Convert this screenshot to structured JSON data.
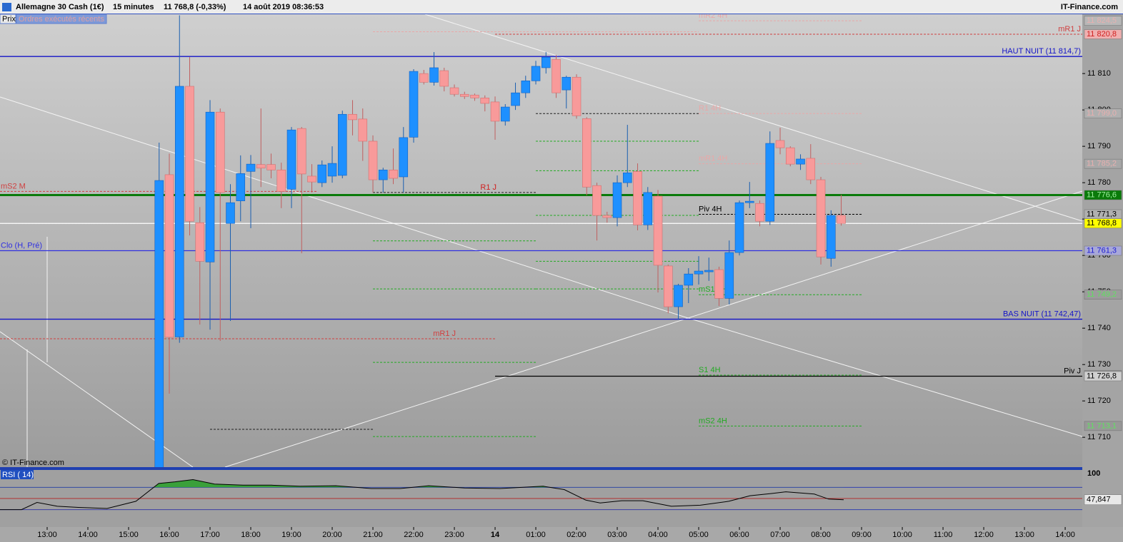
{
  "header": {
    "instrument": "Allemagne 30 Cash (1€)",
    "period": "15 minutes",
    "quote": "11 768,8 (-0,33%)",
    "datetime": "14 août 2019 08:36:53",
    "brand": "IT-Finance.com",
    "tab_price": "Prix",
    "tab_orders": "Ordres exécutés récents",
    "copyright": "© IT-Finance.com"
  },
  "chart_data": {
    "type": "candlestick",
    "up_color": "#1e90ff",
    "down_color": "#f89a9a",
    "xlim": [
      11.842,
      38.42
    ],
    "xticks": [
      {
        "value": 13,
        "label": "13:00"
      },
      {
        "value": 14,
        "label": "14:00"
      },
      {
        "value": 15,
        "label": "15:00"
      },
      {
        "value": 16,
        "label": "16:00"
      },
      {
        "value": 17,
        "label": "17:00"
      },
      {
        "value": 18,
        "label": "18:00"
      },
      {
        "value": 19,
        "label": "19:00"
      },
      {
        "value": 20,
        "label": "20:00"
      },
      {
        "value": 21,
        "label": "21:00"
      },
      {
        "value": 22,
        "label": "22:00"
      },
      {
        "value": 23,
        "label": "23:00"
      },
      {
        "value": 24,
        "label": "14"
      },
      {
        "value": 25,
        "label": "01:00"
      },
      {
        "value": 26,
        "label": "02:00"
      },
      {
        "value": 27,
        "label": "03:00"
      },
      {
        "value": 28,
        "label": "04:00"
      },
      {
        "value": 29,
        "label": "05:00"
      },
      {
        "value": 30,
        "label": "06:00"
      },
      {
        "value": 31,
        "label": "07:00"
      },
      {
        "value": 32,
        "label": "08:00"
      },
      {
        "value": 33,
        "label": "09:00"
      },
      {
        "value": 34,
        "label": "10:00"
      },
      {
        "value": 35,
        "label": "11:00"
      },
      {
        "value": 36,
        "label": "12:00"
      },
      {
        "value": 37,
        "label": "13:00"
      },
      {
        "value": 38,
        "label": "14:00"
      }
    ],
    "ylim": [
      11701.8,
      11826.3
    ],
    "yticks": [
      {
        "value": 11710,
        "label": "11 710"
      },
      {
        "value": 11720,
        "label": "11 720"
      },
      {
        "value": 11730,
        "label": "11 730"
      },
      {
        "value": 11740,
        "label": "11 740"
      },
      {
        "value": 11750,
        "label": "11 750"
      },
      {
        "value": 11760,
        "label": "11 760"
      },
      {
        "value": 11770,
        "label": "11 770"
      },
      {
        "value": 11780,
        "label": "11 780"
      },
      {
        "value": 11790,
        "label": "11 790"
      },
      {
        "value": 11800,
        "label": "11 800"
      },
      {
        "value": 11810,
        "label": "11 810"
      }
    ],
    "x": [
      15.75,
      16,
      16.25,
      16.5,
      16.75,
      17,
      17.25,
      17.5,
      17.75,
      18,
      18.25,
      18.5,
      18.75,
      19,
      19.25,
      19.5,
      19.75,
      20,
      20.25,
      20.5,
      20.75,
      21,
      21.25,
      21.5,
      21.75,
      22,
      22.25,
      22.5,
      22.75,
      23,
      23.25,
      23.5,
      23.75,
      24,
      24.25,
      24.5,
      24.75,
      25,
      25.25,
      25.5,
      25.75,
      26,
      26.25,
      26.5,
      26.75,
      27,
      27.25,
      27.5,
      27.75,
      28,
      28.25,
      28.5,
      28.75,
      29,
      29.25,
      29.5,
      29.75,
      30,
      30.25,
      30.5,
      30.75,
      31,
      31.25,
      31.5,
      31.75,
      32,
      32.25,
      32.5
    ],
    "open": [
      11700,
      11782.2,
      11737.6,
      11806.5,
      11769,
      11758.2,
      11799.4,
      11768.8,
      11775,
      11783.1,
      11785,
      11785,
      11783.5,
      11778.2,
      11794.9,
      11781.8,
      11780,
      11781.8,
      11782,
      11798.8,
      11797.5,
      11791.4,
      11780.8,
      11783.5,
      11781.6,
      11792.5,
      11810,
      11807.6,
      11810.8,
      11806.1,
      11804.3,
      11804.1,
      11803.3,
      11802.2,
      11796.9,
      11801.2,
      11804.7,
      11808,
      11811.6,
      11813.9,
      11805.5,
      11809,
      11797.6,
      11779.2,
      11771,
      11770.4,
      11780,
      11783.1,
      11768.4,
      11776.3,
      11757.1,
      11745.9,
      11751.8,
      11754.9,
      11755.5,
      11756.1,
      11748.2,
      11760.8,
      11774.5,
      11774.3,
      11769.4,
      11791.6,
      11789.6,
      11785.1,
      11786.7,
      11780.8,
      11759.2,
      11771
    ],
    "high": [
      11791,
      11788,
      11826,
      11814.5,
      11773.3,
      11802.7,
      11800.4,
      11779.6,
      11787.5,
      11787.6,
      11800.4,
      11788,
      11785.5,
      11795.3,
      11795.3,
      11785.1,
      11786.1,
      11790,
      11799.8,
      11802.7,
      11800.4,
      11793,
      11784.1,
      11789.4,
      11795.3,
      11811.2,
      11811,
      11815.9,
      11811.6,
      11807,
      11805,
      11804.5,
      11804,
      11803.7,
      11801.6,
      11807.5,
      11809.4,
      11813.5,
      11815.9,
      11815.1,
      11809.4,
      11809.8,
      11798,
      11780,
      11772,
      11782,
      11795.9,
      11785.3,
      11778.8,
      11778,
      11757.5,
      11752.2,
      11756.5,
      11759.8,
      11759.4,
      11756.9,
      11764.1,
      11775.1,
      11780.2,
      11775.1,
      11794.1,
      11795.1,
      11790,
      11787.8,
      11790.6,
      11781.6,
      11772.4,
      11776.7
    ],
    "low": [
      11695,
      11722,
      11736,
      11765.5,
      11741,
      11739.6,
      11736.5,
      11742,
      11769.4,
      11767.5,
      11778.8,
      11781.2,
      11773,
      11773,
      11760.6,
      11777.3,
      11778.8,
      11780,
      11781.2,
      11793,
      11786,
      11777.3,
      11777.3,
      11779.6,
      11777.3,
      11791,
      11807,
      11806.7,
      11805.1,
      11803.7,
      11803,
      11802.5,
      11799.6,
      11791.8,
      11795.7,
      11800,
      11803.3,
      11807,
      11810,
      11803.3,
      11800.4,
      11797.6,
      11776.5,
      11764.1,
      11769,
      11768,
      11778.8,
      11766.9,
      11767,
      11749.8,
      11744.1,
      11742.3,
      11746.9,
      11752,
      11753,
      11746.1,
      11746.5,
      11760,
      11773,
      11768,
      11768.4,
      11787.8,
      11784.5,
      11783.5,
      11779.6,
      11757.5,
      11756.9,
      11768.2
    ],
    "close": [
      11780.6,
      11737.5,
      11806.5,
      11769.4,
      11758.4,
      11799.4,
      11777.3,
      11774.5,
      11782.5,
      11785.1,
      11784,
      11783.5,
      11777.6,
      11794.5,
      11782.4,
      11780.2,
      11784.9,
      11785.3,
      11798.8,
      11797.3,
      11791.4,
      11780.8,
      11783.5,
      11781.2,
      11792.4,
      11810.6,
      11807.6,
      11811.6,
      11806.5,
      11804.3,
      11803.7,
      11803.3,
      11801.8,
      11796.9,
      11800.8,
      11804.7,
      11808,
      11812,
      11814.5,
      11804.7,
      11809,
      11798.4,
      11778.8,
      11771,
      11770.4,
      11780,
      11782.7,
      11768.4,
      11777.3,
      11757.3,
      11745.9,
      11751.8,
      11754.9,
      11755.7,
      11755.9,
      11748.2,
      11760.8,
      11774.5,
      11774.9,
      11769.4,
      11790.8,
      11789.6,
      11785.1,
      11786.5,
      11780.8,
      11759.6,
      11771,
      11768.8
    ],
    "levels": [
      {
        "label": "HAUT NUIT (11 814,7)",
        "value": 11814.7,
        "color": "#1414c8",
        "style": "solid",
        "from": 11.842,
        "to": 38.42
      },
      {
        "label": "BAS NUIT (11 742,47)",
        "value": 11742.47,
        "color": "#1414c8",
        "style": "solid",
        "from": 11.842,
        "to": 38.42
      },
      {
        "label": "Clo (H, Pré)",
        "value": 11761.3,
        "color": "#3030e0",
        "style": "solid",
        "from": 11.842,
        "to": 38.42
      },
      {
        "label": "mS2 M",
        "value": 11777.6,
        "color": "#d04040",
        "style": "dashed",
        "from": 11.842,
        "to": 19.65
      },
      {
        "value": 11776.6,
        "color": "#0a7a0a",
        "style": "thick",
        "from": 11.842,
        "to": 38.42
      },
      {
        "value": 11768.8,
        "color": "#ffffff",
        "style": "solid",
        "from": 11.842,
        "to": 38.42
      },
      {
        "label": "mR1 J",
        "value": 11737.1,
        "color": "#d04040",
        "style": "dashed",
        "from": 11.842,
        "to": 24.0
      },
      {
        "label": "mR1 J",
        "value": 11820.8,
        "color": "#d04040",
        "style": "dashed",
        "from": 24.0,
        "to": 38.42
      },
      {
        "label": "R1 J",
        "value": 11777.3,
        "color": "#202020",
        "label_color": "#d02020",
        "style": "dashed",
        "from": 21.0,
        "to": 25.0
      },
      {
        "label": "Piv J",
        "value": 11726.8,
        "color": "#000000",
        "style": "solid",
        "from": 24.0,
        "to": 38.42
      },
      {
        "label": "Piv 4H",
        "value": 11771.3,
        "color": "#000000",
        "style": "dashed",
        "from": 29.0,
        "to": 33.0
      },
      {
        "label": "mS1 4H",
        "value": 11749.2,
        "color": "#22aa22",
        "style": "dashed",
        "from": 29.0,
        "to": 33.0
      },
      {
        "label": "S1 4H",
        "value": 11727.1,
        "color": "#22aa22",
        "style": "dashed",
        "from": 29.0,
        "to": 33.0
      },
      {
        "label": "mS2 4H",
        "value": 11713.1,
        "color": "#22aa22",
        "style": "dashed",
        "from": 29.0,
        "to": 33.0
      },
      {
        "label": "R1 4H",
        "value": 11799.0,
        "color": "#e8a8a8",
        "style": "dashed",
        "from": 29.0,
        "to": 33.0
      },
      {
        "label": "mR1 4H",
        "value": 11785.2,
        "color": "#e8a8a8",
        "style": "dashed",
        "from": 29.0,
        "to": 33.0
      },
      {
        "label": "mR2 4H",
        "value": 11824.5,
        "color": "#e8a8a8",
        "style": "dashed",
        "from": 29.0,
        "to": 33.0
      },
      {
        "value": 11764.0,
        "color": "#22aa22",
        "style": "dashed",
        "from": 21.0,
        "to": 25.0
      },
      {
        "value": 11750.8,
        "color": "#22aa22",
        "style": "dashed",
        "from": 21.0,
        "to": 25.0
      },
      {
        "value": 11730.6,
        "color": "#22aa22",
        "style": "dashed",
        "from": 21.0,
        "to": 25.0
      },
      {
        "value": 11710.2,
        "color": "#22aa22",
        "style": "dashed",
        "from": 21.0,
        "to": 25.0
      },
      {
        "value": 11791.4,
        "color": "#22aa22",
        "style": "dashed",
        "from": 25.0,
        "to": 29.0
      },
      {
        "value": 11783.3,
        "color": "#22aa22",
        "style": "dashed",
        "from": 25.0,
        "to": 29.0
      },
      {
        "value": 11771.0,
        "color": "#22aa22",
        "style": "dashed",
        "from": 25.0,
        "to": 29.0
      },
      {
        "value": 11758.4,
        "color": "#22aa22",
        "style": "dashed",
        "from": 25.0,
        "to": 29.0
      },
      {
        "value": 11750.8,
        "color": "#22aa22",
        "style": "dashed",
        "from": 25.0,
        "to": 29.0
      },
      {
        "value": 11799.0,
        "color": "#202020",
        "style": "dashed",
        "from": 25.0,
        "to": 29.0
      },
      {
        "value": 11712.2,
        "color": "#202020",
        "style": "dashed",
        "from": 17.0,
        "to": 21.0
      },
      {
        "value": 11821.5,
        "color": "#e8a8a8",
        "style": "dashed",
        "from": 21.0,
        "to": 29.0
      }
    ],
    "price_tags": [
      {
        "value": 11824.5,
        "label": "11 824,5",
        "color": "#e8b0b0",
        "bg": "#b8b8b8"
      },
      {
        "value": 11820.8,
        "label": "11 820,8",
        "color": "#d02020",
        "bg": "#f0b0b0"
      },
      {
        "value": 11799.0,
        "label": "11 799,0",
        "color": "#e8b0b0",
        "bg": "#b0b0b0"
      },
      {
        "value": 11785.2,
        "label": "11 785,2",
        "color": "#e8b0b0",
        "bg": "#a8a8a8"
      },
      {
        "value": 11776.6,
        "label": "11 776,6",
        "color": "#a0f0a0",
        "bg": "#0a7a0a"
      },
      {
        "value": 11771.3,
        "label": "11 771,3",
        "color": "#000000",
        "bg": "#b0b0b0"
      },
      {
        "value": 11768.8,
        "label": "11 768,8",
        "color": "#000000",
        "bg": "#ffff00"
      },
      {
        "value": 11761.3,
        "label": "11 761,3",
        "color": "#2020d0",
        "bg": "#a8a8d8"
      },
      {
        "value": 11749.2,
        "label": "11 749,2",
        "color": "#60e060",
        "bg": "#9c9c9c"
      },
      {
        "value": 11727.1,
        "label": "11 727,1",
        "color": "#60e060",
        "bg": "#9a9a9a"
      },
      {
        "value": 11726.8,
        "label": "11 726,8",
        "color": "#000000",
        "bg": "#d0d0d0"
      },
      {
        "value": 11713.1,
        "label": "11 713,1",
        "color": "#60e060",
        "bg": "#989898"
      }
    ],
    "rsi": {
      "label": "RSI ( 14)",
      "color": "#000000",
      "fill_color": "#3aa03a",
      "low_fill_color": "#a03030",
      "ylim": [
        0,
        100
      ],
      "yticks": [
        100
      ],
      "levels": [
        70,
        50,
        30
      ],
      "current_label": "47,847",
      "x": [
        11.84,
        12.37,
        12.75,
        13.25,
        13.77,
        14.47,
        15.18,
        15.74,
        16.14,
        16.58,
        17.11,
        17.81,
        18.51,
        19.21,
        20.09,
        20.96,
        21.67,
        22.37,
        23.25,
        24.12,
        25.18,
        25.7,
        26.23,
        26.58,
        27.11,
        27.63,
        28.33,
        29.04,
        29.74,
        30.26,
        30.79,
        31.14,
        31.84,
        32.19,
        32.56
      ],
      "values": [
        30,
        30,
        43,
        36,
        34,
        32,
        45,
        77,
        80,
        84,
        76,
        74,
        74,
        72,
        73,
        68,
        68,
        73,
        69,
        68,
        72,
        66,
        47,
        42,
        46,
        46,
        36,
        38,
        45,
        55,
        59,
        62,
        58,
        49,
        47.847
      ]
    }
  }
}
